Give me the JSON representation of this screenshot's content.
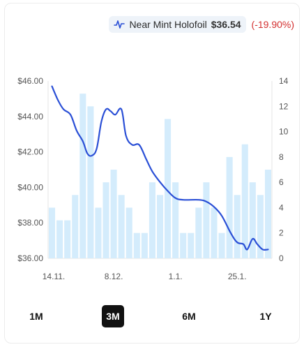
{
  "legend": {
    "series_name": "Near Mint Holofoil",
    "price": "$36.54",
    "change": "(-19.90%)",
    "change_color": "#d32f2f",
    "icon": "line-chart-icon"
  },
  "range_selector": {
    "options": [
      "1M",
      "3M",
      "6M",
      "1Y"
    ],
    "active": "3M"
  },
  "chart_data": {
    "type": "line+bar",
    "x_ticks": [
      "14.11.",
      "8.12.",
      "1.1.",
      "25.1."
    ],
    "left_axis": {
      "ticks": [
        "$46.00",
        "$44.00",
        "$42.00",
        "$40.00",
        "$38.00",
        "$36.00"
      ],
      "range": [
        36,
        46
      ]
    },
    "right_axis": {
      "ticks": [
        "14",
        "12",
        "10",
        "8",
        "6",
        "4",
        "2",
        "0"
      ],
      "range": [
        0,
        14
      ]
    },
    "grid": true,
    "colors": {
      "line": "#2a4fd6",
      "bar": "#d4ecfc"
    },
    "bars": {
      "name": "",
      "axis": "right",
      "values": [
        4,
        3,
        3,
        5,
        13,
        12,
        4,
        6,
        7,
        5,
        4,
        2,
        2,
        6,
        5,
        11,
        6,
        2,
        2,
        4,
        6,
        4,
        2,
        8,
        5,
        9,
        6,
        5,
        7
      ]
    },
    "line": {
      "name": "Near Mint Holofoil",
      "axis": "left",
      "points": [
        [
          0,
          45.7
        ],
        [
          0.8,
          44.9
        ],
        [
          1.5,
          44.4
        ],
        [
          2.4,
          44.1
        ],
        [
          3.2,
          43.2
        ],
        [
          4.0,
          42.6
        ],
        [
          4.6,
          41.9
        ],
        [
          5.2,
          41.8
        ],
        [
          5.8,
          42.2
        ],
        [
          6.4,
          43.7
        ],
        [
          7.0,
          44.4
        ],
        [
          7.6,
          44.3
        ],
        [
          8.2,
          44.1
        ],
        [
          9.0,
          44.4
        ],
        [
          9.6,
          42.9
        ],
        [
          10.4,
          42.4
        ],
        [
          11.3,
          42.4
        ],
        [
          12.2,
          41.6
        ],
        [
          13.0,
          40.9
        ],
        [
          14.0,
          40.3
        ],
        [
          15.0,
          39.8
        ],
        [
          16.0,
          39.4
        ],
        [
          17.0,
          39.3
        ],
        [
          19.0,
          39.3
        ],
        [
          20.0,
          39.2
        ],
        [
          21.0,
          38.9
        ],
        [
          22.0,
          38.4
        ],
        [
          23.2,
          37.4
        ],
        [
          24.0,
          36.9
        ],
        [
          24.8,
          36.8
        ],
        [
          25.3,
          36.5
        ],
        [
          26.0,
          37.1
        ],
        [
          26.6,
          36.8
        ],
        [
          27.3,
          36.5
        ],
        [
          28.0,
          36.5
        ]
      ]
    }
  }
}
